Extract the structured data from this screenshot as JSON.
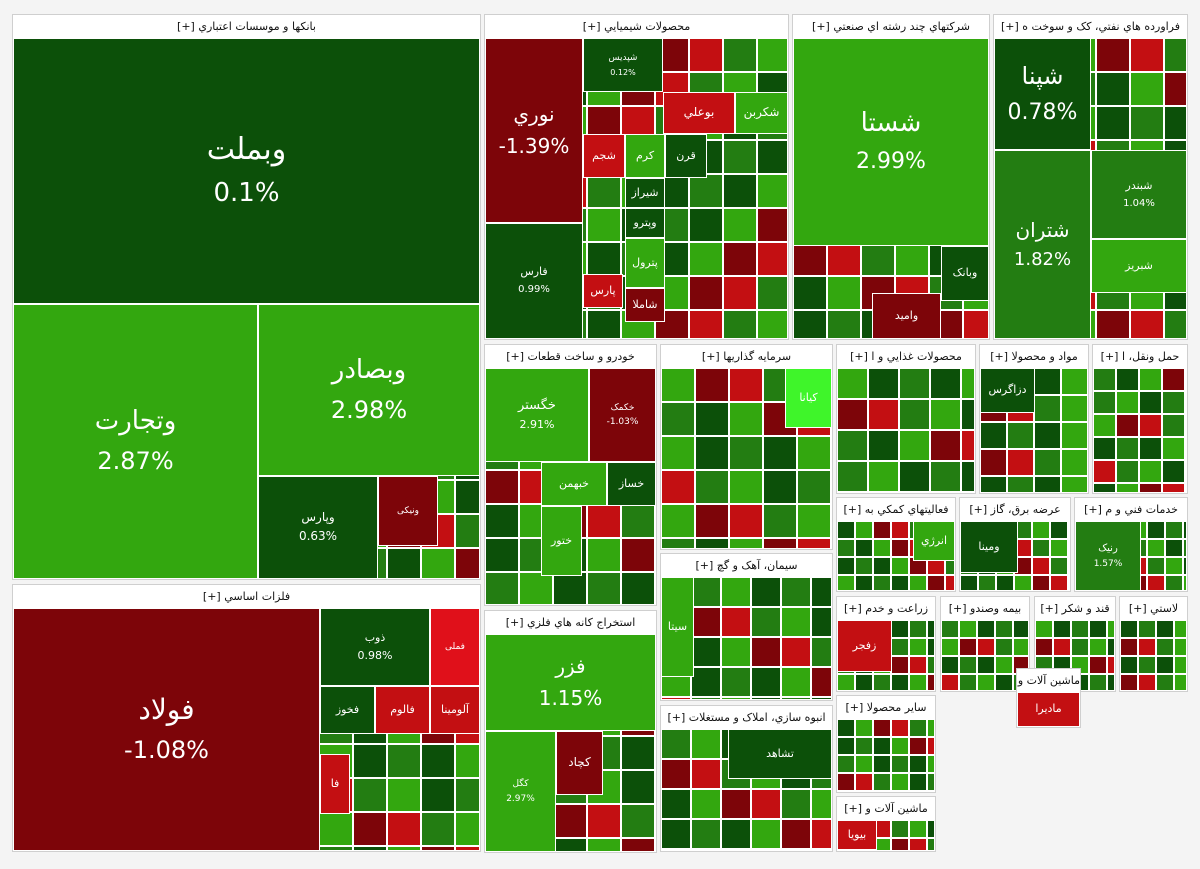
{
  "chart_data": {
    "type": "treemap",
    "colors": {
      "strong_green": "#33a70f",
      "mid_green": "#237d12",
      "dark_green": "#0c5009",
      "bright_green": "#3ff52a",
      "dark_red": "#7d0509",
      "red": "#c30f12",
      "bright_red": "#e0101a"
    },
    "sectors": [
      {
        "id": "banks",
        "name": "بانکها و موسسات اعتباري [+]",
        "tiles": [
          {
            "symbol": "وبملت",
            "value": "0.1%",
            "color": "dark_green"
          },
          {
            "symbol": "وتجارت",
            "value": "2.87%",
            "color": "strong_green"
          },
          {
            "symbol": "وبصادر",
            "value": "2.98%",
            "color": "strong_green"
          },
          {
            "symbol": "وپارس",
            "value": "0.63%",
            "color": "dark_green"
          },
          {
            "symbol": "ونیکی",
            "value": "",
            "color": "dark_red"
          }
        ]
      },
      {
        "id": "metals",
        "name": "فلزات اساسي [+]",
        "tiles": [
          {
            "symbol": "فولاد",
            "value": "-1.08%",
            "color": "dark_red"
          },
          {
            "symbol": "ذوب",
            "value": "0.98%",
            "color": "dark_green"
          },
          {
            "symbol": "فخوز",
            "value": "",
            "color": "dark_green"
          },
          {
            "symbol": "فالوم",
            "value": "",
            "color": "red"
          },
          {
            "symbol": "فملی",
            "value": "",
            "color": "bright_red"
          },
          {
            "symbol": "آلومينا",
            "value": "",
            "color": "red"
          },
          {
            "symbol": "فا",
            "value": "",
            "color": "red"
          }
        ]
      },
      {
        "id": "chemicals",
        "name": "محصولات شيميايي [+]",
        "tiles": [
          {
            "symbol": "نوري",
            "value": "-1.39%",
            "color": "dark_red"
          },
          {
            "symbol": "فارس",
            "value": "0.99%",
            "color": "dark_green"
          },
          {
            "symbol": "شپديس",
            "value": "0.12%",
            "color": "dark_green"
          },
          {
            "symbol": "بوعلي",
            "value": "",
            "color": "red"
          },
          {
            "symbol": "شکربن",
            "value": "",
            "color": "strong_green"
          },
          {
            "symbol": "شجم",
            "value": "",
            "color": "red"
          },
          {
            "symbol": "کرم",
            "value": "",
            "color": "strong_green"
          },
          {
            "symbol": "قرن",
            "value": "",
            "color": "dark_green"
          },
          {
            "symbol": "شيراز",
            "value": "",
            "color": "dark_green"
          },
          {
            "symbol": "وپترو",
            "value": "",
            "color": "dark_green"
          },
          {
            "symbol": "پترول",
            "value": "",
            "color": "strong_green"
          },
          {
            "symbol": "پارس",
            "value": "",
            "color": "red"
          },
          {
            "symbol": "شاملا",
            "value": "",
            "color": "dark_red"
          }
        ]
      },
      {
        "id": "diversified",
        "name": "شرکتهاي چند رشته اي صنعتي [+]",
        "tiles": [
          {
            "symbol": "شستا",
            "value": "2.99%",
            "color": "strong_green"
          },
          {
            "symbol": "وبانک",
            "value": "",
            "color": "dark_green"
          },
          {
            "symbol": "واميد",
            "value": "",
            "color": "dark_red"
          }
        ]
      },
      {
        "id": "refinery",
        "name": "فراورده هاي نفتي، کک و سوخت ه [+]",
        "tiles": [
          {
            "symbol": "شپنا",
            "value": "0.78%",
            "color": "dark_green"
          },
          {
            "symbol": "شتران",
            "value": "1.82%",
            "color": "mid_green"
          },
          {
            "symbol": "شبندر",
            "value": "1.04%",
            "color": "mid_green"
          },
          {
            "symbol": "شبريز",
            "value": "",
            "color": "strong_green"
          }
        ]
      },
      {
        "id": "auto",
        "name": "خودرو و ساخت قطعات [+]",
        "tiles": [
          {
            "symbol": "خگستر",
            "value": "2.91%",
            "color": "strong_green"
          },
          {
            "symbol": "خکمک",
            "value": "-1.03%",
            "color": "dark_red"
          },
          {
            "symbol": "خبهمن",
            "value": "",
            "color": "strong_green"
          },
          {
            "symbol": "خساز",
            "value": "",
            "color": "dark_green"
          },
          {
            "symbol": "ختور",
            "value": "",
            "color": "strong_green"
          }
        ]
      },
      {
        "id": "invest",
        "name": "سرمايه گذاريها [+]",
        "tiles": [
          {
            "symbol": "کيانا",
            "value": "",
            "color": "bright_green"
          }
        ]
      },
      {
        "id": "mining",
        "name": "استخراج کانه هاي فلزي [+]",
        "tiles": [
          {
            "symbol": "فزر",
            "value": "1.15%",
            "color": "strong_green"
          },
          {
            "symbol": "کگل",
            "value": "2.97%",
            "color": "strong_green"
          },
          {
            "symbol": "کچاد",
            "value": "",
            "color": "dark_red"
          }
        ]
      },
      {
        "id": "cement",
        "name": "سيمان، آهک و گچ [+]",
        "tiles": [
          {
            "symbol": "سيتا",
            "value": "",
            "color": "strong_green"
          }
        ]
      },
      {
        "id": "realestate",
        "name": "انبوه سازي، املاک و مستغلات [+]",
        "tiles": [
          {
            "symbol": "تشاهد",
            "value": "",
            "color": "dark_green"
          }
        ]
      },
      {
        "id": "food",
        "name": "محصولات غذايي و ا [+]",
        "tiles": []
      },
      {
        "id": "materials",
        "name": "مواد و محصولا [+]",
        "tiles": [
          {
            "symbol": "دزاگرس",
            "value": "",
            "color": "dark_green"
          }
        ]
      },
      {
        "id": "transport",
        "name": "حمل ونقل، ا [+]",
        "tiles": []
      },
      {
        "id": "support",
        "name": "فعاليتهاي کمکي به [+]",
        "tiles": [
          {
            "symbol": "انرژي",
            "value": "",
            "color": "strong_green"
          }
        ]
      },
      {
        "id": "utility",
        "name": "عرضه برق، گاز [+]",
        "tiles": [
          {
            "symbol": "ومينا",
            "value": "",
            "color": "dark_green"
          }
        ]
      },
      {
        "id": "engineering",
        "name": "خدمات فني و م [+]",
        "tiles": [
          {
            "symbol": "رنيک",
            "value": "1.57%",
            "color": "mid_green"
          }
        ]
      },
      {
        "id": "agri",
        "name": "زراعت و خدم [+]",
        "tiles": [
          {
            "symbol": "زفجر",
            "value": "",
            "color": "red"
          }
        ]
      },
      {
        "id": "insurance",
        "name": "بيمه وصندو [+]",
        "tiles": []
      },
      {
        "id": "sugar",
        "name": "قند و شکر [+]",
        "tiles": []
      },
      {
        "id": "plastic",
        "name": "لاستي [+]",
        "tiles": []
      },
      {
        "id": "machinery",
        "name": "ماشين آلات و [+]",
        "tiles": [
          {
            "symbol": "ماديرا",
            "value": "",
            "color": "red"
          }
        ]
      },
      {
        "id": "other",
        "name": "ساير محصولا [+]",
        "tiles": []
      },
      {
        "id": "pharma",
        "name": "ماشين آلات و [+]",
        "tiles": [
          {
            "symbol": "بيويا",
            "value": "",
            "color": "red"
          }
        ]
      }
    ]
  }
}
